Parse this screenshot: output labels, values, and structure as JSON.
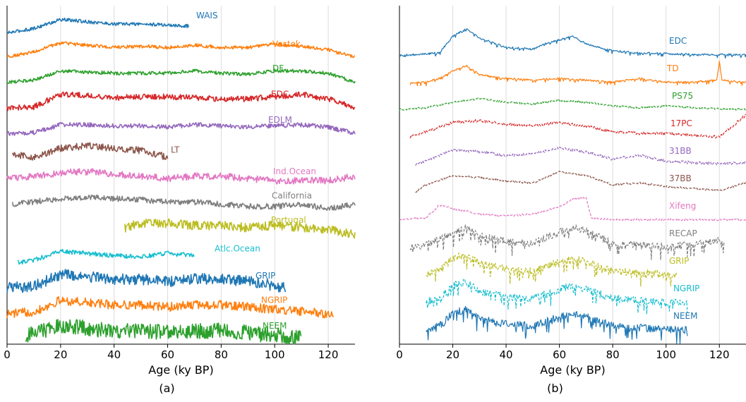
{
  "chart_data": [
    {
      "type": "line",
      "panel_label": "(a)",
      "xlabel": "Age (ky BP)",
      "ylabel": "",
      "xlim": [
        0,
        130
      ],
      "x_ticks": [
        0,
        20,
        40,
        60,
        80,
        100,
        120
      ],
      "grid": "vertical",
      "y_axis_ticks": "none",
      "series": [
        {
          "name": "WAIS",
          "color": "#1f77b4",
          "linestyle": "solid",
          "x_range": [
            0,
            68
          ],
          "noise": 3,
          "x": [
            0,
            10,
            20,
            30,
            40,
            50,
            60,
            68
          ],
          "y": [
            2,
            6,
            14,
            12,
            10,
            10,
            9,
            8
          ]
        },
        {
          "name": "Vostok",
          "color": "#ff7f0e",
          "linestyle": "solid",
          "x_range": [
            0,
            130
          ],
          "noise": 3,
          "x": [
            0,
            10,
            20,
            30,
            40,
            50,
            60,
            70,
            80,
            90,
            100,
            110,
            120,
            130
          ],
          "y": [
            4,
            8,
            16,
            14,
            12,
            13,
            12,
            14,
            12,
            12,
            15,
            13,
            10,
            3
          ]
        },
        {
          "name": "DF",
          "color": "#2ca02c",
          "linestyle": "solid",
          "x_range": [
            0,
            130
          ],
          "noise": 3,
          "x": [
            0,
            10,
            20,
            30,
            40,
            50,
            60,
            70,
            80,
            90,
            100,
            110,
            120,
            130
          ],
          "y": [
            4,
            6,
            14,
            13,
            12,
            12,
            12,
            14,
            12,
            11,
            14,
            14,
            12,
            4
          ]
        },
        {
          "name": "EDC",
          "color": "#d62728",
          "linestyle": "solid",
          "x_range": [
            0,
            130
          ],
          "noise": 5,
          "x": [
            0,
            10,
            20,
            30,
            40,
            50,
            60,
            70,
            80,
            90,
            100,
            110,
            120,
            130
          ],
          "y": [
            4,
            5,
            16,
            15,
            13,
            14,
            14,
            13,
            12,
            12,
            14,
            16,
            12,
            4
          ]
        },
        {
          "name": "EDLM",
          "color": "#9467bd",
          "linestyle": "solid",
          "x_range": [
            0,
            130
          ],
          "noise": 4,
          "x": [
            0,
            10,
            20,
            30,
            40,
            50,
            60,
            70,
            80,
            90,
            100,
            110,
            120,
            130
          ],
          "y": [
            4,
            5,
            12,
            12,
            11,
            11,
            10,
            12,
            11,
            10,
            11,
            12,
            10,
            4
          ]
        },
        {
          "name": "LT",
          "color": "#8c564b",
          "linestyle": "solid",
          "x_range": [
            2,
            60
          ],
          "noise": 6,
          "x": [
            2,
            10,
            20,
            30,
            40,
            50,
            60
          ],
          "y": [
            8,
            6,
            14,
            16,
            14,
            12,
            6
          ]
        },
        {
          "name": "Ind.Ocean",
          "color": "#e377c2",
          "linestyle": "solid",
          "x_range": [
            0,
            130
          ],
          "noise": 6,
          "x": [
            0,
            10,
            20,
            30,
            40,
            50,
            60,
            70,
            80,
            90,
            100,
            110,
            120,
            130
          ],
          "y": [
            10,
            12,
            15,
            16,
            14,
            12,
            10,
            12,
            12,
            10,
            8,
            8,
            8,
            12
          ]
        },
        {
          "name": "California",
          "color": "#7f7f7f",
          "linestyle": "solid",
          "x_range": [
            2,
            130
          ],
          "noise": 5,
          "x": [
            2,
            10,
            20,
            30,
            40,
            50,
            60,
            70,
            80,
            90,
            100,
            110,
            120,
            130
          ],
          "y": [
            10,
            12,
            15,
            16,
            15,
            14,
            12,
            12,
            10,
            8,
            8,
            10,
            6,
            10
          ]
        },
        {
          "name": "Portugal",
          "color": "#bcbd22",
          "linestyle": "solid",
          "x_range": [
            44,
            130
          ],
          "noise": 8,
          "x": [
            44,
            50,
            60,
            70,
            80,
            90,
            100,
            110,
            120,
            130
          ],
          "y": [
            12,
            16,
            16,
            14,
            14,
            12,
            14,
            12,
            10,
            6
          ]
        },
        {
          "name": "Atlc.Ocean",
          "color": "#17becf",
          "linestyle": "solid",
          "x_range": [
            4,
            70
          ],
          "noise": 4,
          "x": [
            4,
            10,
            20,
            30,
            40,
            50,
            60,
            70
          ],
          "y": [
            4,
            6,
            14,
            12,
            10,
            9,
            12,
            10
          ]
        },
        {
          "name": "GRIP",
          "color": "#1f77b4",
          "linestyle": "solid",
          "x_range": [
            0,
            104
          ],
          "noise": 10,
          "x": [
            0,
            10,
            20,
            30,
            40,
            50,
            60,
            70,
            80,
            90,
            100,
            104
          ],
          "y": [
            4,
            6,
            16,
            14,
            12,
            12,
            10,
            12,
            12,
            10,
            6,
            4
          ]
        },
        {
          "name": "NGRIP",
          "color": "#ff7f0e",
          "linestyle": "solid",
          "x_range": [
            0,
            122
          ],
          "noise": 8,
          "x": [
            0,
            10,
            20,
            30,
            40,
            50,
            60,
            70,
            80,
            90,
            100,
            110,
            120,
            122
          ],
          "y": [
            4,
            6,
            16,
            14,
            12,
            12,
            10,
            12,
            12,
            10,
            8,
            6,
            4,
            2
          ]
        },
        {
          "name": "NEEM",
          "color": "#2ca02c",
          "linestyle": "solid",
          "x_range": [
            7,
            110
          ],
          "noise": 14,
          "x": [
            7,
            10,
            20,
            30,
            40,
            50,
            60,
            70,
            80,
            90,
            100,
            110
          ],
          "y": [
            8,
            10,
            16,
            14,
            12,
            12,
            10,
            12,
            12,
            10,
            8,
            6
          ]
        }
      ]
    },
    {
      "type": "line",
      "panel_label": "(b)",
      "xlabel": "Age (ky BP)",
      "ylabel": "",
      "xlim": [
        0,
        130
      ],
      "x_ticks": [
        0,
        20,
        40,
        60,
        80,
        100,
        120
      ],
      "grid": "vertical",
      "y_axis_ticks": "none",
      "series": [
        {
          "name": "EDC",
          "color": "#1f77b4",
          "linestyle": "solid",
          "x_range": [
            0,
            130
          ],
          "noise": 2,
          "spiky": true,
          "x": [
            0,
            15,
            20,
            25,
            30,
            40,
            50,
            55,
            60,
            65,
            70,
            80,
            90,
            100,
            110,
            120,
            130
          ],
          "y": [
            1,
            4,
            22,
            30,
            20,
            10,
            8,
            14,
            18,
            22,
            14,
            6,
            4,
            3,
            2,
            2,
            2
          ]
        },
        {
          "name": "TD",
          "color": "#ff7f0e",
          "linestyle": "solid",
          "x_range": [
            4,
            130
          ],
          "noise": 2,
          "spiky": true,
          "x": [
            4,
            10,
            15,
            20,
            25,
            30,
            40,
            50,
            60,
            70,
            80,
            90,
            100,
            110,
            119,
            120,
            121,
            130
          ],
          "y": [
            1,
            2,
            6,
            14,
            20,
            10,
            6,
            4,
            6,
            4,
            2,
            6,
            2,
            2,
            4,
            24,
            4,
            2
          ]
        },
        {
          "name": "PS75",
          "color": "#2ca02c",
          "linestyle": "dashed",
          "x_range": [
            0,
            130
          ],
          "noise": 2,
          "x": [
            0,
            10,
            20,
            30,
            40,
            50,
            60,
            70,
            80,
            90,
            100,
            110,
            120,
            130
          ],
          "y": [
            2,
            4,
            10,
            14,
            10,
            8,
            12,
            10,
            6,
            4,
            6,
            4,
            3,
            2
          ]
        },
        {
          "name": "17PC",
          "color": "#d62728",
          "linestyle": "dashed",
          "x_range": [
            4,
            130
          ],
          "noise": 3,
          "x": [
            4,
            10,
            20,
            30,
            40,
            50,
            60,
            70,
            80,
            90,
            100,
            110,
            120,
            130
          ],
          "y": [
            2,
            8,
            18,
            20,
            16,
            14,
            18,
            14,
            8,
            6,
            6,
            4,
            2,
            26
          ]
        },
        {
          "name": "31BB",
          "color": "#9467bd",
          "linestyle": "dashed",
          "x_range": [
            6,
            130
          ],
          "noise": 3,
          "x": [
            6,
            10,
            20,
            30,
            40,
            50,
            60,
            70,
            80,
            90,
            100,
            110,
            120,
            130
          ],
          "y": [
            2,
            6,
            18,
            16,
            12,
            14,
            20,
            16,
            8,
            12,
            6,
            4,
            3,
            4
          ]
        },
        {
          "name": "37BB",
          "color": "#8c564b",
          "linestyle": "dashed",
          "x_range": [
            6,
            130
          ],
          "noise": 2,
          "x": [
            6,
            10,
            20,
            30,
            40,
            50,
            60,
            70,
            80,
            90,
            100,
            110,
            120,
            130
          ],
          "y": [
            2,
            10,
            20,
            18,
            14,
            12,
            24,
            20,
            10,
            12,
            8,
            6,
            4,
            12
          ]
        },
        {
          "name": "Xifeng",
          "color": "#e377c2",
          "linestyle": "dashed",
          "x_range": [
            0,
            130
          ],
          "noise": 2,
          "x": [
            0,
            10,
            15,
            20,
            30,
            40,
            50,
            60,
            65,
            70,
            72,
            80,
            90,
            100,
            110,
            120,
            130
          ],
          "y": [
            2,
            4,
            18,
            14,
            8,
            6,
            8,
            16,
            24,
            26,
            4,
            2,
            2,
            2,
            2,
            2,
            2
          ]
        },
        {
          "name": "RECAP",
          "color": "#7f7f7f",
          "linestyle": "dashed",
          "x_range": [
            4,
            122
          ],
          "noise": 8,
          "spiky": true,
          "x": [
            4,
            10,
            20,
            25,
            30,
            40,
            50,
            60,
            65,
            70,
            80,
            90,
            100,
            110,
            120,
            122
          ],
          "y": [
            2,
            4,
            18,
            24,
            14,
            8,
            6,
            18,
            24,
            20,
            6,
            4,
            3,
            4,
            10,
            4
          ]
        },
        {
          "name": "GRIP",
          "color": "#bcbd22",
          "linestyle": "dashed",
          "x_range": [
            10,
            104
          ],
          "noise": 8,
          "spiky": true,
          "x": [
            10,
            15,
            20,
            25,
            30,
            40,
            50,
            60,
            65,
            70,
            80,
            90,
            100,
            104
          ],
          "y": [
            2,
            6,
            20,
            24,
            14,
            8,
            6,
            16,
            20,
            16,
            6,
            4,
            2,
            2
          ]
        },
        {
          "name": "NGRIP",
          "color": "#17becf",
          "linestyle": "dashed",
          "x_range": [
            10,
            108
          ],
          "noise": 8,
          "spiky": true,
          "x": [
            10,
            15,
            20,
            25,
            30,
            40,
            50,
            60,
            65,
            70,
            80,
            90,
            100,
            108
          ],
          "y": [
            2,
            6,
            20,
            24,
            14,
            8,
            6,
            16,
            20,
            16,
            6,
            4,
            2,
            2
          ]
        },
        {
          "name": "NEEM",
          "color": "#1f77b4",
          "linestyle": "solid",
          "x_range": [
            10,
            108
          ],
          "noise": 8,
          "spiky": true,
          "x": [
            10,
            15,
            20,
            25,
            30,
            40,
            50,
            60,
            65,
            70,
            80,
            90,
            100,
            108
          ],
          "y": [
            2,
            6,
            20,
            24,
            14,
            8,
            6,
            16,
            20,
            16,
            6,
            4,
            2,
            2
          ]
        }
      ]
    }
  ]
}
